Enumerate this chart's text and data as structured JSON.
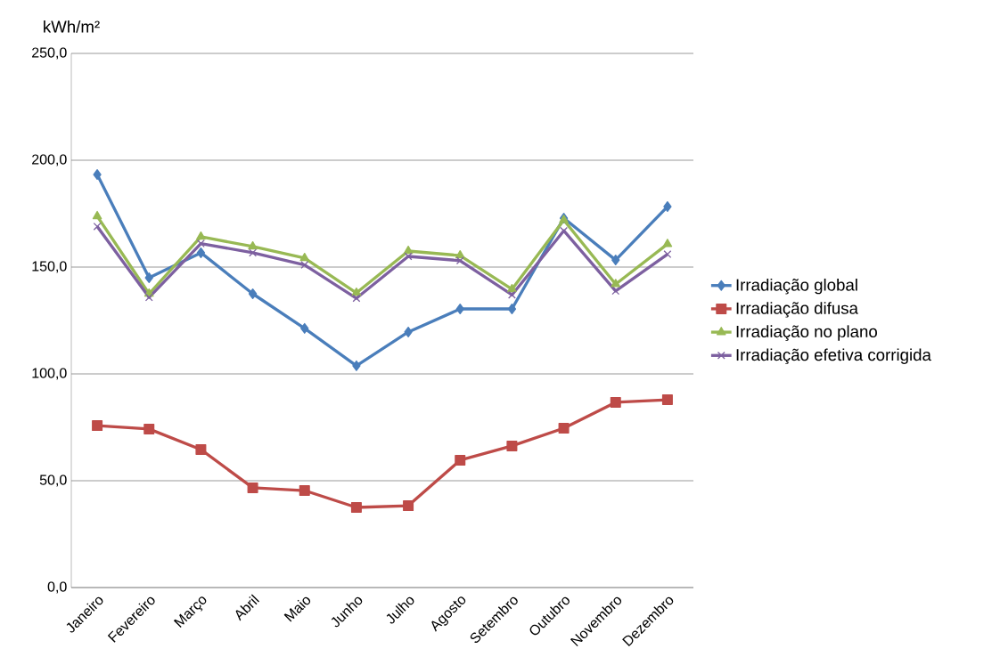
{
  "chart_data": {
    "type": "line",
    "ylabel": "kWh/m²",
    "categories": [
      "Janeiro",
      "Fevereiro",
      "Março",
      "Abril",
      "Maio",
      "Junho",
      "Julho",
      "Agosto",
      "Setembro",
      "Outubro",
      "Novembro",
      "Dezembro"
    ],
    "series": [
      {
        "name": "Irradiação global",
        "color": "#4a7ebb",
        "marker": "diamond",
        "values": [
          193.3,
          145,
          156.7,
          137.5,
          121.3,
          103.8,
          119.6,
          130.4,
          130.4,
          172.9,
          153.3,
          178.3
        ]
      },
      {
        "name": "Irradiação difusa",
        "color": "#be4b48",
        "marker": "square",
        "values": [
          75.8,
          74.2,
          64.6,
          46.7,
          45.4,
          37.5,
          38.3,
          59.6,
          66.3,
          74.6,
          86.7,
          87.9
        ]
      },
      {
        "name": "Irradiação no plano",
        "color": "#98b954",
        "marker": "triangle",
        "values": [
          173.8,
          137.5,
          164.2,
          159.6,
          154.2,
          137.9,
          157.5,
          155.4,
          139.6,
          172,
          142,
          160.8
        ]
      },
      {
        "name": "Irradiação efetiva corrigida",
        "color": "#7d60a0",
        "marker": "cross",
        "values": [
          169,
          135.8,
          161,
          156.7,
          151,
          135.4,
          155,
          153,
          137,
          167,
          138.8,
          156
        ]
      }
    ],
    "ylim": [
      0,
      250
    ],
    "yticks": [
      {
        "value": 0,
        "label": "0,0"
      },
      {
        "value": 50,
        "label": "50,0"
      },
      {
        "value": 100,
        "label": "100,0"
      },
      {
        "value": 150,
        "label": "150,0"
      },
      {
        "value": 200,
        "label": "200,0"
      },
      {
        "value": 250,
        "label": "250,0"
      }
    ],
    "grid": "y",
    "legend": "right",
    "line_style": "solid"
  }
}
